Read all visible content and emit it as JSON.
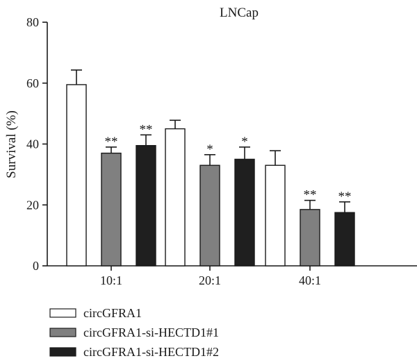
{
  "chart_data": {
    "type": "bar",
    "title": "LNCap",
    "xlabel": "",
    "ylabel": "Survival (%)",
    "ylim": [
      0,
      80
    ],
    "yticks": [
      0,
      20,
      40,
      60,
      80
    ],
    "categories": [
      "10:1",
      "20:1",
      "40:1"
    ],
    "legend_position": "bottom",
    "series": [
      {
        "name": "circGFRA1",
        "color": "#ffffff",
        "values": [
          59.5,
          45,
          33
        ],
        "errors": [
          4.8,
          2.8,
          4.8
        ],
        "significance": [
          "",
          "",
          ""
        ]
      },
      {
        "name": "circGFRA1-si-HECTD1#1",
        "color": "#808080",
        "values": [
          37,
          33,
          18.5
        ],
        "errors": [
          2,
          3.5,
          3
        ],
        "significance": [
          "**",
          "*",
          "**"
        ]
      },
      {
        "name": "circGFRA1-si-HECTD1#2",
        "color": "#1f1f1f",
        "values": [
          39.5,
          35,
          17.5
        ],
        "errors": [
          3.5,
          4,
          3.5
        ],
        "significance": [
          "**",
          "*",
          "**"
        ]
      }
    ]
  }
}
